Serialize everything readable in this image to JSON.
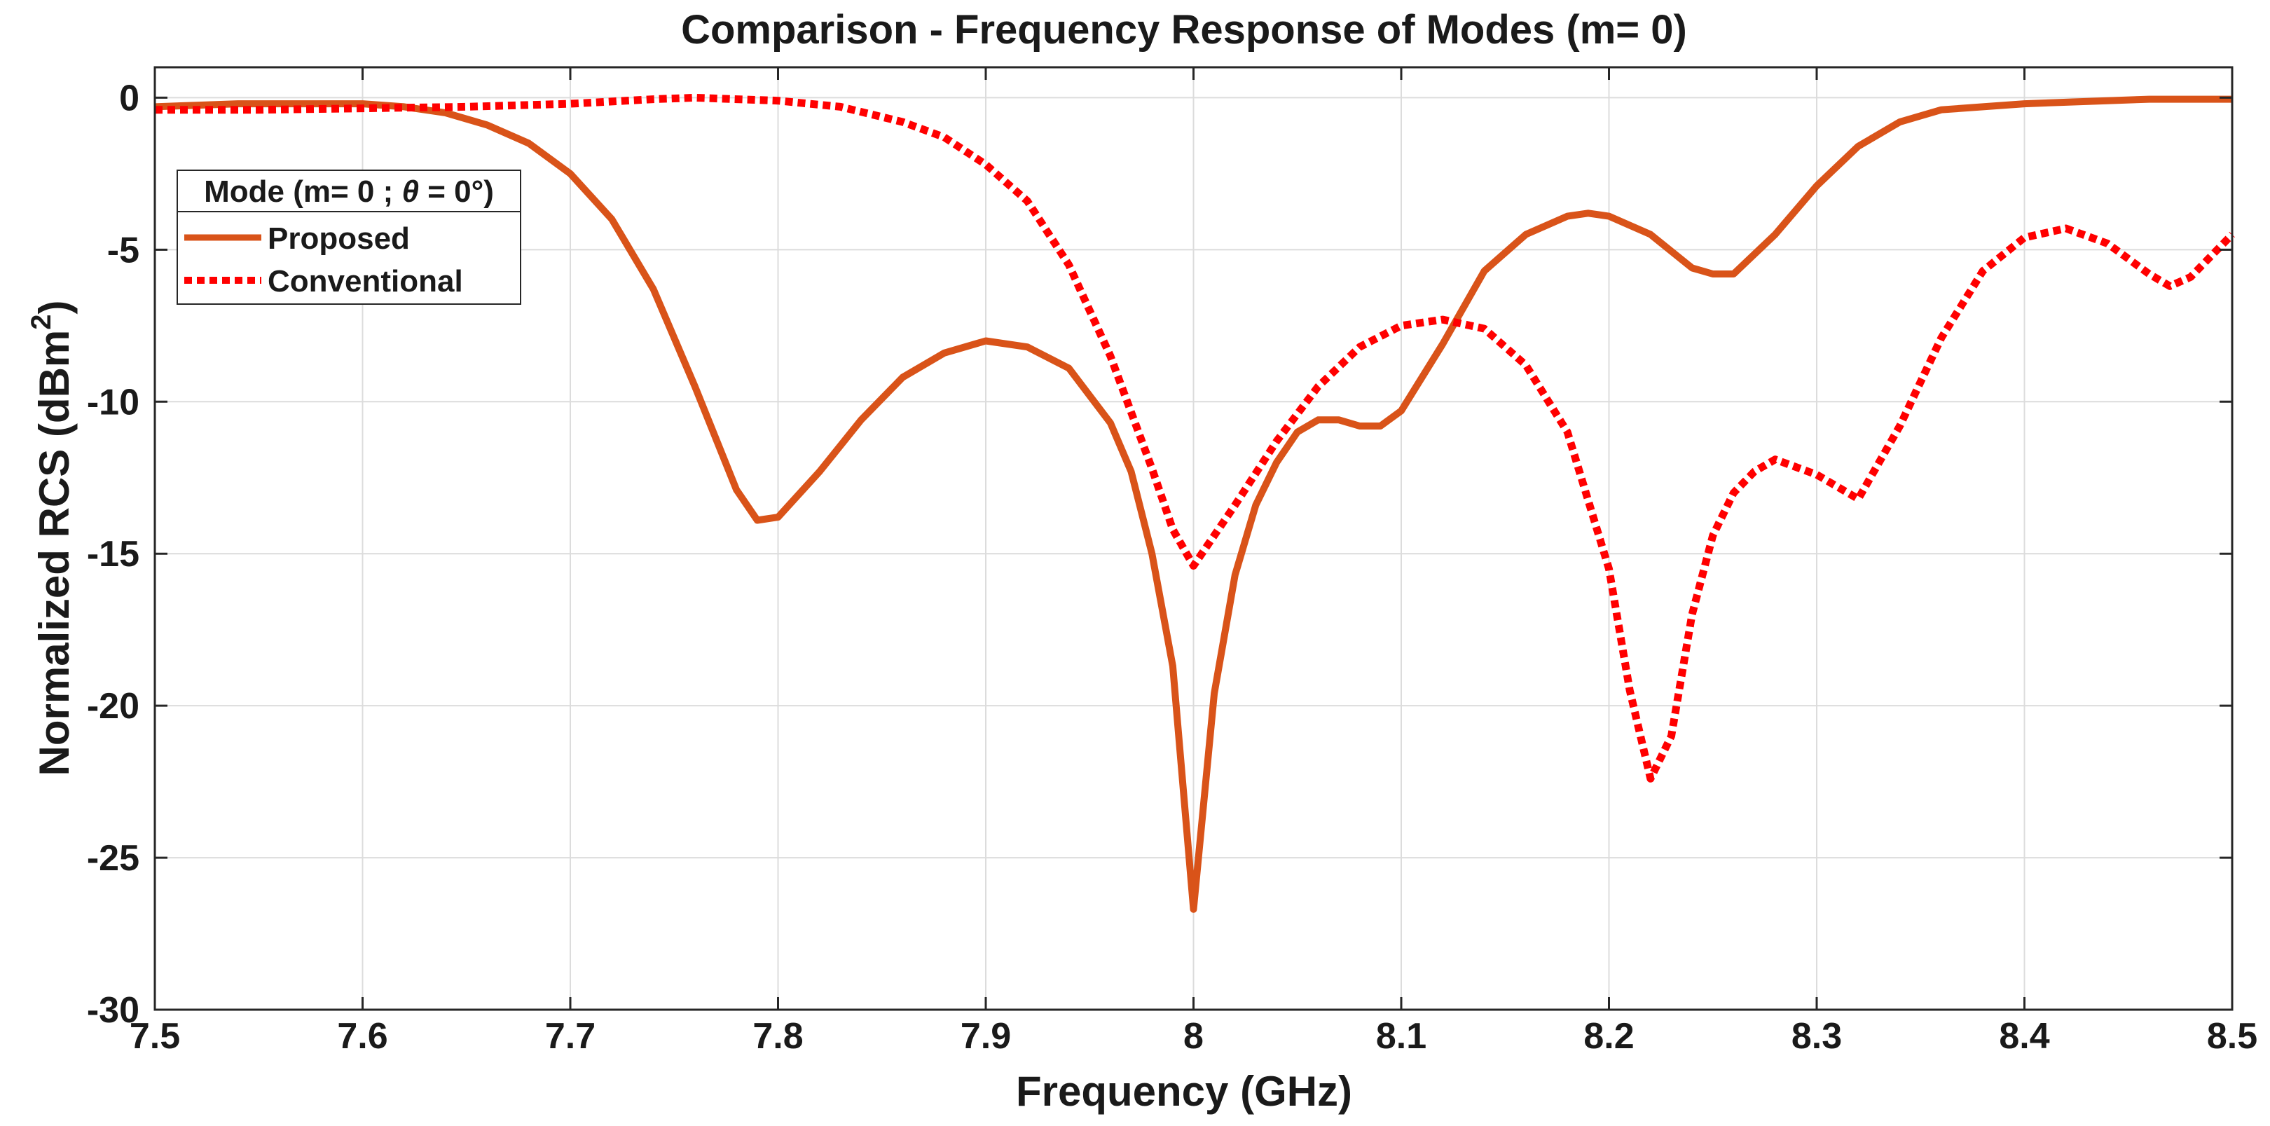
{
  "chart_data": {
    "type": "line",
    "title": "Comparison - Frequency Response of Modes (m= 0)",
    "xlabel": "Frequency (GHz)",
    "ylabel": "Normalized RCS (dBm²)",
    "ylabel_parts": {
      "main": "Normalized RCS (dBm",
      "sup": "2",
      "close": ")"
    },
    "xlim": [
      7.5,
      8.5
    ],
    "ylim": [
      -30,
      1
    ],
    "xticks": [
      7.5,
      7.6,
      7.7,
      7.8,
      7.9,
      8,
      8.1,
      8.2,
      8.3,
      8.4,
      8.5
    ],
    "xtick_labels": [
      "7.5",
      "7.6",
      "7.7",
      "7.8",
      "7.9",
      "8",
      "8.1",
      "8.2",
      "8.3",
      "8.4",
      "8.5"
    ],
    "yticks": [
      0,
      -5,
      -10,
      -15,
      -20,
      -25,
      -30
    ],
    "ytick_labels": [
      "0",
      "-5",
      "-10",
      "-15",
      "-20",
      "-25",
      "-30"
    ],
    "grid": true,
    "legend": {
      "title": "Mode (m= 0 ; θ = 0°)",
      "title_parts": {
        "before": "Mode (m= 0 ; ",
        "theta": "θ",
        "after": " = 0°)"
      },
      "position": "upper-left"
    },
    "series": [
      {
        "name": "Proposed",
        "color": "#D95319",
        "style": "solid",
        "x": [
          7.5,
          7.52,
          7.54,
          7.56,
          7.58,
          7.6,
          7.62,
          7.64,
          7.66,
          7.68,
          7.7,
          7.72,
          7.74,
          7.76,
          7.78,
          7.79,
          7.8,
          7.82,
          7.84,
          7.86,
          7.88,
          7.9,
          7.92,
          7.94,
          7.96,
          7.97,
          7.98,
          7.99,
          8.0,
          8.01,
          8.02,
          8.03,
          8.04,
          8.05,
          8.06,
          8.07,
          8.08,
          8.09,
          8.1,
          8.12,
          8.14,
          8.16,
          8.18,
          8.19,
          8.2,
          8.22,
          8.24,
          8.25,
          8.26,
          8.28,
          8.3,
          8.32,
          8.34,
          8.36,
          8.38,
          8.4,
          8.42,
          8.44,
          8.46,
          8.48,
          8.5
        ],
        "y": [
          -0.3,
          -0.25,
          -0.2,
          -0.2,
          -0.2,
          -0.2,
          -0.3,
          -0.5,
          -0.9,
          -1.5,
          -2.5,
          -4.0,
          -6.3,
          -9.5,
          -12.9,
          -13.9,
          -13.8,
          -12.3,
          -10.6,
          -9.2,
          -8.4,
          -8.0,
          -8.2,
          -8.9,
          -10.7,
          -12.3,
          -15.0,
          -18.7,
          -26.7,
          -19.6,
          -15.7,
          -13.4,
          -12.0,
          -11.0,
          -10.6,
          -10.6,
          -10.8,
          -10.8,
          -10.3,
          -8.1,
          -5.7,
          -4.5,
          -3.9,
          -3.8,
          -3.9,
          -4.5,
          -5.6,
          -5.8,
          -5.8,
          -4.5,
          -2.9,
          -1.6,
          -0.8,
          -0.4,
          -0.3,
          -0.2,
          -0.15,
          -0.1,
          -0.05,
          -0.05,
          -0.05
        ]
      },
      {
        "name": "Conventional",
        "color": "#FF0000",
        "style": "dotted",
        "x": [
          7.5,
          7.55,
          7.6,
          7.65,
          7.7,
          7.74,
          7.76,
          7.78,
          7.8,
          7.83,
          7.86,
          7.88,
          7.9,
          7.92,
          7.94,
          7.96,
          7.98,
          7.99,
          8.0,
          8.02,
          8.04,
          8.06,
          8.08,
          8.1,
          8.12,
          8.14,
          8.16,
          8.18,
          8.2,
          8.21,
          8.22,
          8.23,
          8.24,
          8.25,
          8.26,
          8.27,
          8.28,
          8.3,
          8.32,
          8.34,
          8.36,
          8.38,
          8.4,
          8.42,
          8.44,
          8.46,
          8.47,
          8.48,
          8.5
        ],
        "y": [
          -0.4,
          -0.4,
          -0.35,
          -0.3,
          -0.2,
          -0.05,
          0.0,
          -0.05,
          -0.1,
          -0.3,
          -0.8,
          -1.3,
          -2.2,
          -3.4,
          -5.5,
          -8.5,
          -12.2,
          -14.2,
          -15.4,
          -13.4,
          -11.3,
          -9.5,
          -8.2,
          -7.5,
          -7.3,
          -7.6,
          -8.8,
          -11.0,
          -15.5,
          -19.5,
          -22.4,
          -21.0,
          -17.0,
          -14.4,
          -13.0,
          -12.3,
          -11.9,
          -12.4,
          -13.2,
          -10.8,
          -7.9,
          -5.7,
          -4.6,
          -4.3,
          -4.8,
          -5.8,
          -6.2,
          -5.9,
          -4.5
        ]
      }
    ]
  }
}
